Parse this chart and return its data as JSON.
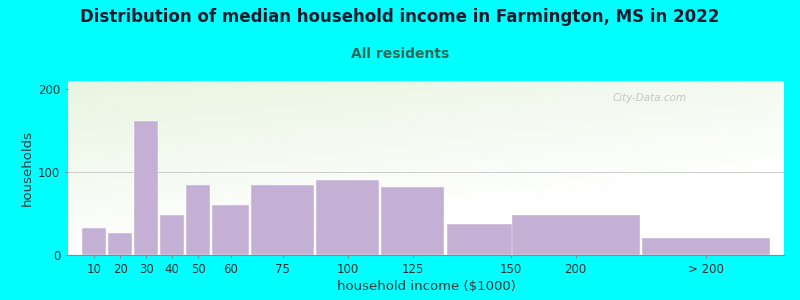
{
  "title": "Distribution of median household income in Farmington, MS in 2022",
  "subtitle": "All residents",
  "xlabel": "household income ($1000)",
  "ylabel": "households",
  "background_outer": "#00FFFF",
  "bar_color": "#C4B0D4",
  "plot_bg_colors": [
    "#E8F5E0",
    "#FFFFFF"
  ],
  "categories": [
    "10",
    "20",
    "30",
    "40",
    "50",
    "60",
    "75",
    "100",
    "125",
    "150",
    "200",
    "> 200"
  ],
  "values": [
    33,
    27,
    162,
    48,
    85,
    60,
    85,
    90,
    82,
    38,
    48,
    20
  ],
  "bar_widths": [
    10,
    10,
    10,
    10,
    10,
    15,
    25,
    25,
    25,
    50,
    50,
    50
  ],
  "bar_lefts": [
    5,
    15,
    25,
    35,
    45,
    55,
    70,
    95,
    120,
    145,
    170,
    220
  ],
  "xlim": [
    0,
    275
  ],
  "ylim": [
    0,
    210
  ],
  "yticks": [
    0,
    100,
    200
  ],
  "watermark": "City-Data.com",
  "title_fontsize": 12,
  "subtitle_fontsize": 10,
  "subtitle_color": "#336655",
  "axis_label_fontsize": 9.5,
  "tick_fontsize": 8.5
}
